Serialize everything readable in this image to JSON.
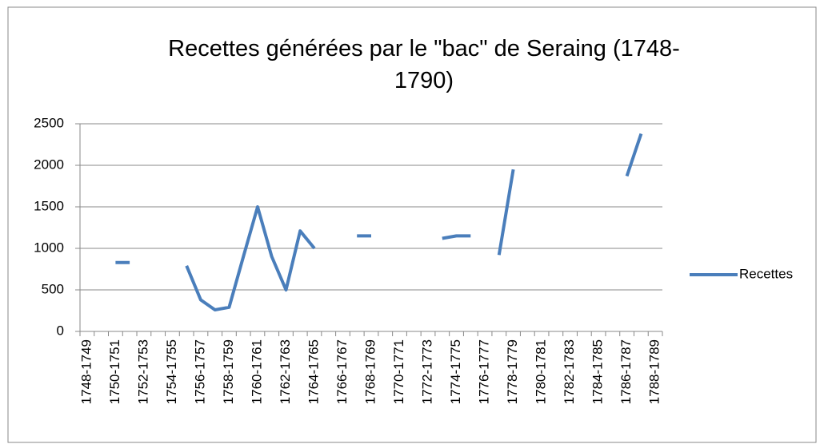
{
  "chart_data": {
    "type": "line",
    "title": "Recettes générées par le \"bac\" de Seraing (1748-1790)",
    "categories": [
      "1748-1749",
      null,
      "1750-1751",
      null,
      "1752-1753",
      null,
      "1754-1755",
      null,
      "1756-1757",
      null,
      "1758-1759",
      null,
      "1760-1761",
      null,
      "1762-1763",
      null,
      "1764-1765",
      null,
      "1766-1767",
      null,
      "1768-1769",
      null,
      "1770-1771",
      null,
      "1772-1773",
      null,
      "1774-1775",
      null,
      "1776-1777",
      null,
      "1778-1779",
      null,
      "1780-1781",
      null,
      "1782-1783",
      null,
      "1784-1785",
      null,
      "1786-1787",
      null,
      "1788-1789"
    ],
    "series": [
      {
        "name": "Recettes",
        "color": "#4a7ebb",
        "values": [
          null,
          null,
          830,
          830,
          null,
          null,
          null,
          790,
          380,
          260,
          290,
          900,
          1500,
          900,
          500,
          1210,
          1000,
          null,
          null,
          1150,
          1150,
          null,
          null,
          null,
          null,
          1120,
          1150,
          1150,
          null,
          920,
          1950,
          null,
          null,
          null,
          null,
          null,
          null,
          null,
          1870,
          2380,
          null
        ]
      }
    ],
    "ylim": [
      0,
      2500
    ],
    "yticks": [
      0,
      500,
      1000,
      1500,
      2000,
      2500
    ],
    "grid": true,
    "legend": "right"
  }
}
